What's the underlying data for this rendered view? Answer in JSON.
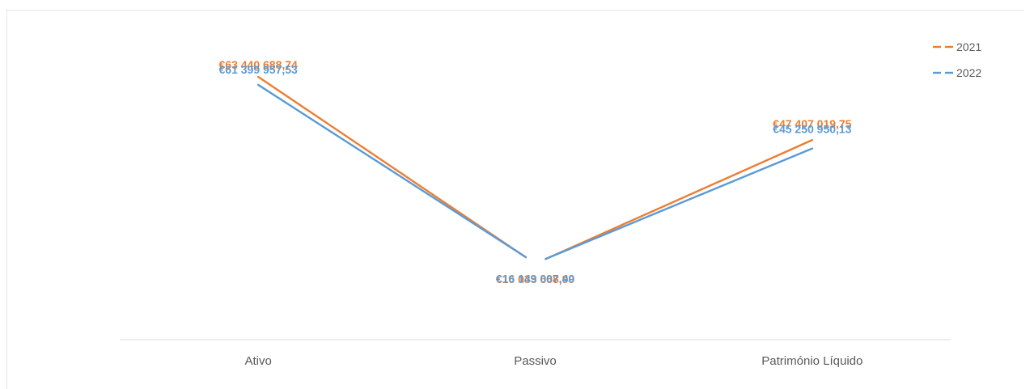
{
  "chart_data": {
    "type": "line",
    "categories": [
      "Ativo",
      "Passivo",
      "Património Líquido"
    ],
    "series": [
      {
        "name": "2021",
        "color": "#ED7D31",
        "values": [
          63440688.74,
          16033668.99,
          47407019.75
        ],
        "labels": [
          "€63 440 688,74",
          "€16 033 668,99",
          "€47 407 019,75"
        ]
      },
      {
        "name": "2022",
        "color": "#5B9BD5",
        "values": [
          61399957.53,
          16149007.4,
          45250950.13
        ],
        "labels": [
          "€61 399 957,53",
          "€16 149 007,40",
          "€45 250 950,13"
        ]
      }
    ],
    "legend_position": "top-right",
    "grid": false,
    "title": "",
    "xlabel": "",
    "ylabel": ""
  }
}
